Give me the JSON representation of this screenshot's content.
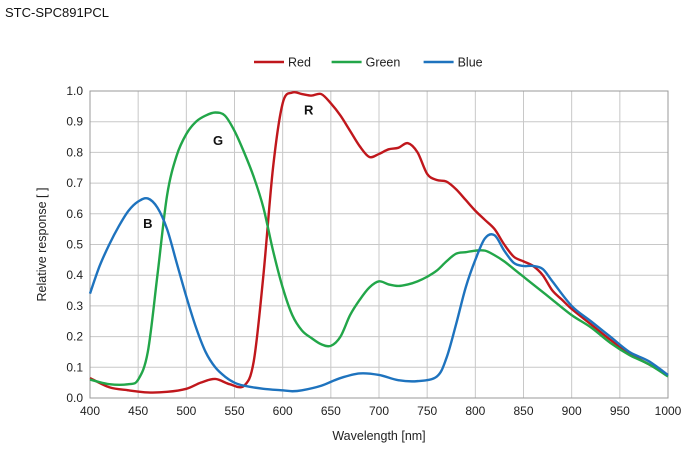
{
  "title": "STC-SPC891PCL",
  "chart_data": {
    "type": "line",
    "title": "STC-SPC891PCL",
    "xlabel": "Wavelength [nm]",
    "ylabel": "Relative response [ ]",
    "xlim": [
      400,
      1000
    ],
    "ylim": [
      0,
      1.0
    ],
    "xticks": [
      400,
      450,
      500,
      550,
      600,
      650,
      700,
      750,
      800,
      850,
      900,
      950,
      1000
    ],
    "yticks": [
      "0.0",
      "0.1",
      "0.2",
      "0.3",
      "0.4",
      "0.5",
      "0.6",
      "0.7",
      "0.8",
      "0.9",
      "1.0"
    ],
    "grid": true,
    "legend_position": "top-center",
    "series": [
      {
        "name": "Red",
        "color": "#c0171c",
        "x": [
          400,
          420,
          440,
          460,
          480,
          500,
          515,
          530,
          545,
          560,
          570,
          580,
          590,
          600,
          610,
          620,
          630,
          640,
          650,
          660,
          670,
          680,
          690,
          700,
          710,
          720,
          730,
          740,
          750,
          760,
          770,
          780,
          790,
          800,
          810,
          820,
          830,
          840,
          850,
          860,
          870,
          880,
          890,
          900,
          920,
          940,
          960,
          980,
          1000
        ],
        "y": [
          0.065,
          0.035,
          0.025,
          0.018,
          0.02,
          0.03,
          0.05,
          0.062,
          0.045,
          0.04,
          0.12,
          0.4,
          0.75,
          0.96,
          0.995,
          0.99,
          0.985,
          0.99,
          0.96,
          0.92,
          0.87,
          0.82,
          0.785,
          0.795,
          0.81,
          0.815,
          0.83,
          0.8,
          0.73,
          0.71,
          0.705,
          0.68,
          0.645,
          0.61,
          0.58,
          0.55,
          0.5,
          0.46,
          0.445,
          0.43,
          0.4,
          0.35,
          0.32,
          0.29,
          0.24,
          0.19,
          0.145,
          0.11,
          0.075
        ]
      },
      {
        "name": "Green",
        "color": "#22a649",
        "x": [
          400,
          420,
          440,
          450,
          460,
          470,
          480,
          490,
          500,
          510,
          520,
          530,
          540,
          550,
          560,
          570,
          580,
          590,
          600,
          610,
          620,
          630,
          640,
          650,
          660,
          670,
          680,
          690,
          700,
          710,
          720,
          730,
          740,
          750,
          760,
          770,
          780,
          790,
          800,
          810,
          820,
          830,
          840,
          850,
          860,
          880,
          900,
          920,
          940,
          960,
          980,
          1000
        ],
        "y": [
          0.06,
          0.045,
          0.045,
          0.06,
          0.15,
          0.4,
          0.66,
          0.79,
          0.86,
          0.9,
          0.92,
          0.93,
          0.92,
          0.87,
          0.8,
          0.72,
          0.62,
          0.48,
          0.36,
          0.27,
          0.22,
          0.195,
          0.175,
          0.17,
          0.2,
          0.27,
          0.32,
          0.36,
          0.38,
          0.37,
          0.365,
          0.37,
          0.38,
          0.395,
          0.415,
          0.445,
          0.47,
          0.475,
          0.48,
          0.48,
          0.465,
          0.445,
          0.42,
          0.395,
          0.37,
          0.32,
          0.27,
          0.23,
          0.18,
          0.14,
          0.11,
          0.07
        ]
      },
      {
        "name": "Blue",
        "color": "#1e73be",
        "x": [
          400,
          410,
          420,
          430,
          440,
          450,
          460,
          470,
          480,
          490,
          500,
          510,
          520,
          530,
          540,
          550,
          560,
          580,
          600,
          610,
          620,
          640,
          660,
          680,
          700,
          720,
          740,
          760,
          770,
          780,
          790,
          800,
          810,
          820,
          830,
          840,
          850,
          860,
          870,
          880,
          900,
          920,
          940,
          960,
          980,
          1000
        ],
        "y": [
          0.34,
          0.43,
          0.5,
          0.56,
          0.61,
          0.64,
          0.65,
          0.62,
          0.55,
          0.44,
          0.33,
          0.23,
          0.15,
          0.1,
          0.07,
          0.05,
          0.04,
          0.03,
          0.025,
          0.022,
          0.025,
          0.04,
          0.065,
          0.08,
          0.075,
          0.058,
          0.055,
          0.07,
          0.13,
          0.24,
          0.36,
          0.45,
          0.52,
          0.53,
          0.48,
          0.44,
          0.43,
          0.43,
          0.42,
          0.38,
          0.3,
          0.25,
          0.2,
          0.15,
          0.12,
          0.075
        ]
      }
    ],
    "annotations": [
      {
        "text": "B",
        "x": 460,
        "y": 0.57
      },
      {
        "text": "G",
        "x": 533,
        "y": 0.84
      },
      {
        "text": "R",
        "x": 627,
        "y": 0.94
      }
    ]
  }
}
